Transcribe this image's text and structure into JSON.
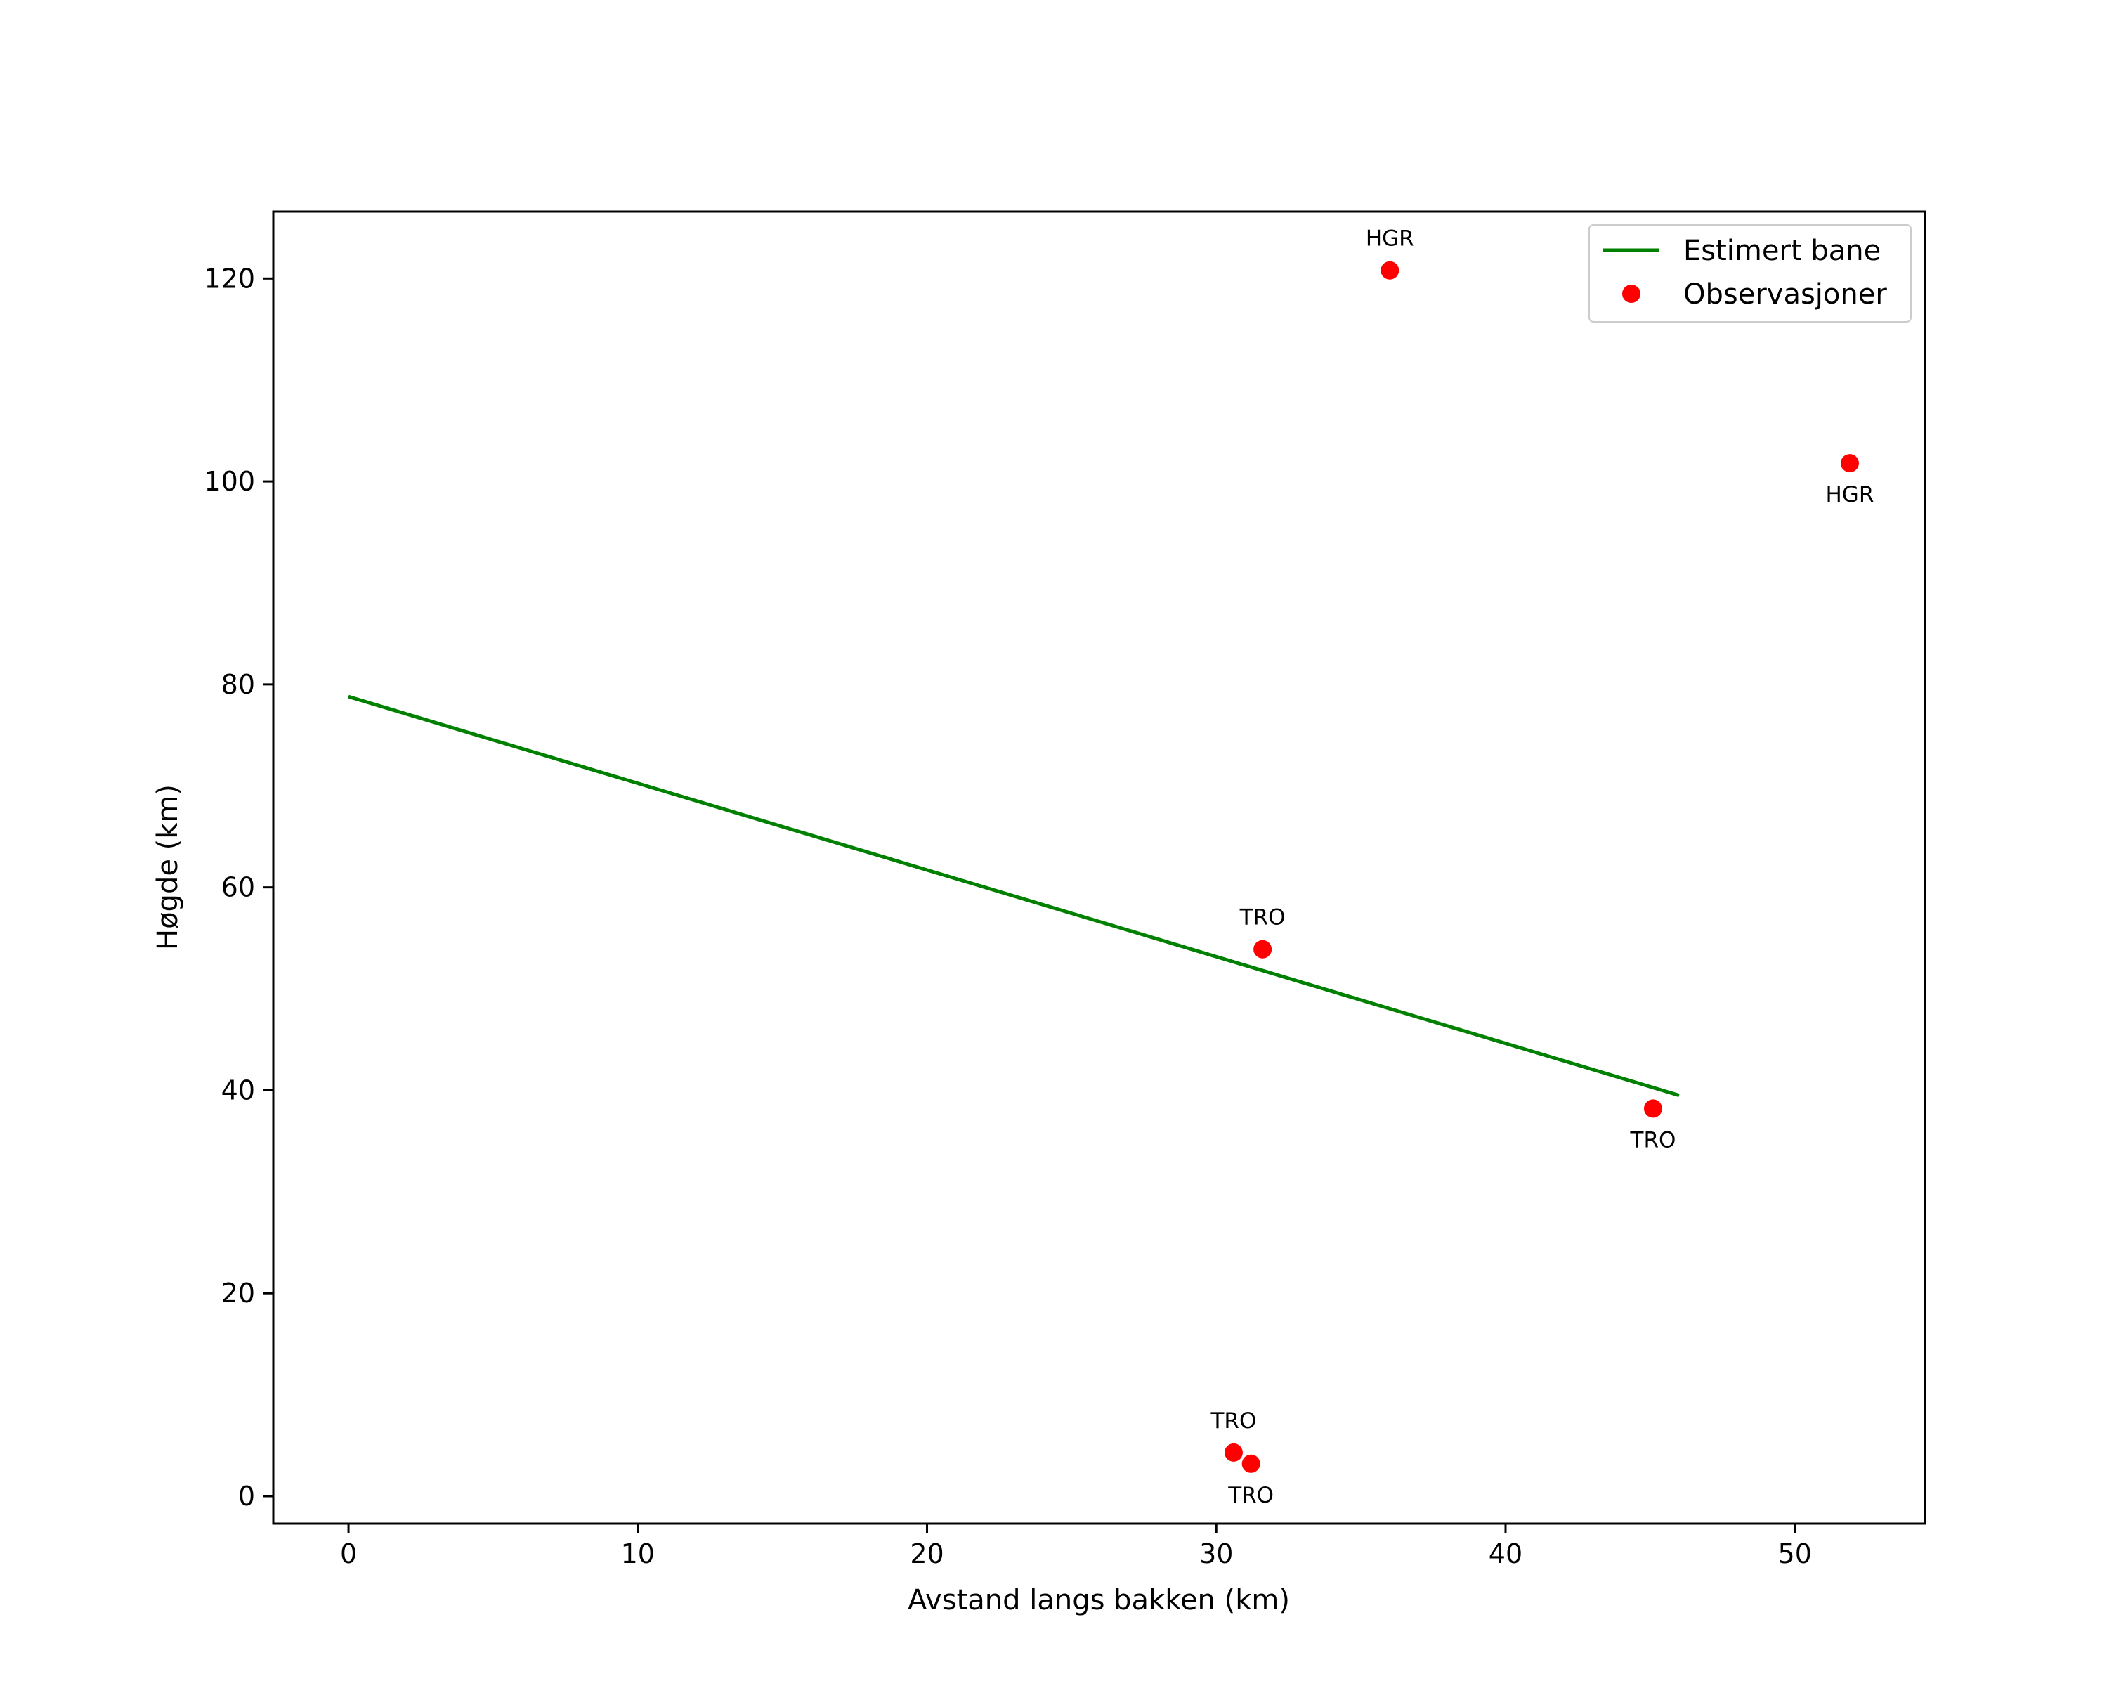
{
  "chart_data": {
    "type": "line",
    "title": "",
    "xlabel": "Avstand langs bakken (km)",
    "ylabel": "Høgde (km)",
    "xlim": [
      -2.6,
      54.5
    ],
    "ylim": [
      -2.7,
      126.6
    ],
    "xticks": [
      0,
      10,
      20,
      30,
      40,
      50
    ],
    "yticks": [
      0,
      20,
      40,
      60,
      80,
      100,
      120
    ],
    "grid": false,
    "legend_position": "top-right",
    "colors": {
      "line": "#008000",
      "points": "#ff0000"
    },
    "series": [
      {
        "name": "Estimert bane",
        "kind": "line",
        "x": [
          0,
          46
        ],
        "y": [
          78.8,
          39.5
        ]
      },
      {
        "name": "Observasjoner",
        "kind": "scatter",
        "points": [
          {
            "x": 36.0,
            "y": 120.8,
            "label": "HGR",
            "label_pos": "above"
          },
          {
            "x": 51.9,
            "y": 101.8,
            "label": "HGR",
            "label_pos": "below"
          },
          {
            "x": 31.6,
            "y": 53.9,
            "label": "TRO",
            "label_pos": "above"
          },
          {
            "x": 45.1,
            "y": 38.2,
            "label": "TRO",
            "label_pos": "below"
          },
          {
            "x": 30.6,
            "y": 4.3,
            "label": "TRO",
            "label_pos": "above"
          },
          {
            "x": 31.2,
            "y": 3.2,
            "label": "TRO",
            "label_pos": "below"
          }
        ]
      }
    ]
  }
}
